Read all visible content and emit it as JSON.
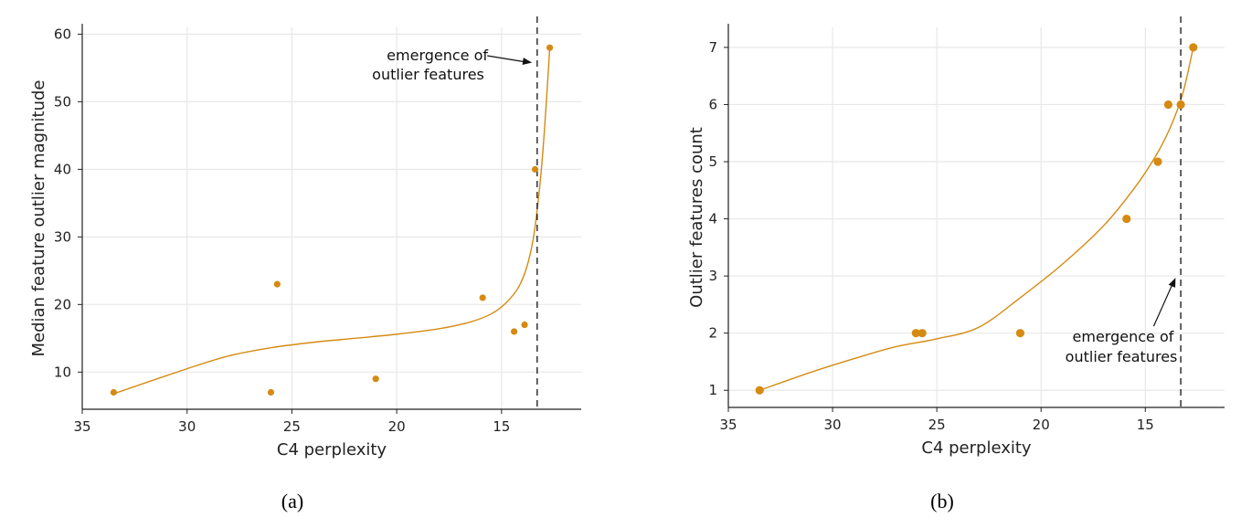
{
  "chart_data": [
    {
      "type": "scatter",
      "panel_label": "(a)",
      "xlabel": "C4 perplexity",
      "ylabel": "Median feature outlier magnitude",
      "x_reversed": true,
      "xlim": [
        35,
        11.2
      ],
      "ylim": [
        4.5,
        61
      ],
      "xticks": [
        35,
        30,
        25,
        20,
        15
      ],
      "yticks": [
        10,
        20,
        30,
        40,
        50,
        60
      ],
      "grid": true,
      "color": "#d68a12",
      "points": [
        {
          "x": 33.5,
          "y": 7
        },
        {
          "x": 26.0,
          "y": 7
        },
        {
          "x": 25.7,
          "y": 23
        },
        {
          "x": 21.0,
          "y": 9
        },
        {
          "x": 15.9,
          "y": 21
        },
        {
          "x": 14.4,
          "y": 16
        },
        {
          "x": 13.9,
          "y": 17
        },
        {
          "x": 13.4,
          "y": 40
        },
        {
          "x": 12.7,
          "y": 58
        }
      ],
      "fit_curve": [
        {
          "x": 33.5,
          "y": 6.8
        },
        {
          "x": 30.0,
          "y": 10.5
        },
        {
          "x": 28.0,
          "y": 12.4
        },
        {
          "x": 26.0,
          "y": 13.6
        },
        {
          "x": 24.0,
          "y": 14.4
        },
        {
          "x": 22.0,
          "y": 15.0
        },
        {
          "x": 20.0,
          "y": 15.6
        },
        {
          "x": 18.0,
          "y": 16.4
        },
        {
          "x": 16.5,
          "y": 17.4
        },
        {
          "x": 15.5,
          "y": 18.6
        },
        {
          "x": 14.8,
          "y": 20.2
        },
        {
          "x": 14.2,
          "y": 22.5
        },
        {
          "x": 13.8,
          "y": 25.5
        },
        {
          "x": 13.5,
          "y": 29.5
        },
        {
          "x": 13.3,
          "y": 34.0
        },
        {
          "x": 13.1,
          "y": 40.0
        },
        {
          "x": 12.95,
          "y": 46.0
        },
        {
          "x": 12.8,
          "y": 53.0
        },
        {
          "x": 12.7,
          "y": 58.0
        }
      ],
      "vline_x": 13.3,
      "annotation": {
        "lines": [
          "emergence of",
          "outlier features"
        ],
        "text_at": [
          21.0,
          56.0
        ],
        "arrow_to": [
          13.55,
          56.0
        ],
        "text_anchor": "start"
      }
    },
    {
      "type": "scatter",
      "panel_label": "(b)",
      "xlabel": "C4 perplexity",
      "ylabel": "Outlier features count",
      "x_reversed": true,
      "xlim": [
        35,
        11.2
      ],
      "ylim": [
        0.7,
        7.35
      ],
      "xticks": [
        35,
        30,
        25,
        20,
        15
      ],
      "yticks": [
        1,
        2,
        3,
        4,
        5,
        6,
        7
      ],
      "grid": true,
      "color": "#d68a12",
      "points": [
        {
          "x": 33.5,
          "y": 1
        },
        {
          "x": 26.0,
          "y": 2
        },
        {
          "x": 25.7,
          "y": 2
        },
        {
          "x": 21.0,
          "y": 2
        },
        {
          "x": 15.9,
          "y": 4
        },
        {
          "x": 14.4,
          "y": 5
        },
        {
          "x": 13.9,
          "y": 6
        },
        {
          "x": 13.3,
          "y": 6
        },
        {
          "x": 12.7,
          "y": 7
        }
      ],
      "fit_curve": [
        {
          "x": 33.5,
          "y": 1.0
        },
        {
          "x": 31.0,
          "y": 1.32
        },
        {
          "x": 29.0,
          "y": 1.55
        },
        {
          "x": 27.0,
          "y": 1.76
        },
        {
          "x": 25.0,
          "y": 1.9
        },
        {
          "x": 23.0,
          "y": 2.1
        },
        {
          "x": 21.0,
          "y": 2.62
        },
        {
          "x": 19.0,
          "y": 3.2
        },
        {
          "x": 17.0,
          "y": 3.88
        },
        {
          "x": 15.5,
          "y": 4.55
        },
        {
          "x": 14.5,
          "y": 5.1
        },
        {
          "x": 13.8,
          "y": 5.6
        },
        {
          "x": 13.2,
          "y": 6.2
        },
        {
          "x": 12.7,
          "y": 7.0
        }
      ],
      "vline_x": 13.3,
      "annotation": {
        "lines": [
          "emergence of",
          "outlier features"
        ],
        "text_at": [
          13.5,
          2.0
        ],
        "arrow_to": [
          13.55,
          3.0
        ],
        "text_anchor": "end"
      }
    }
  ]
}
